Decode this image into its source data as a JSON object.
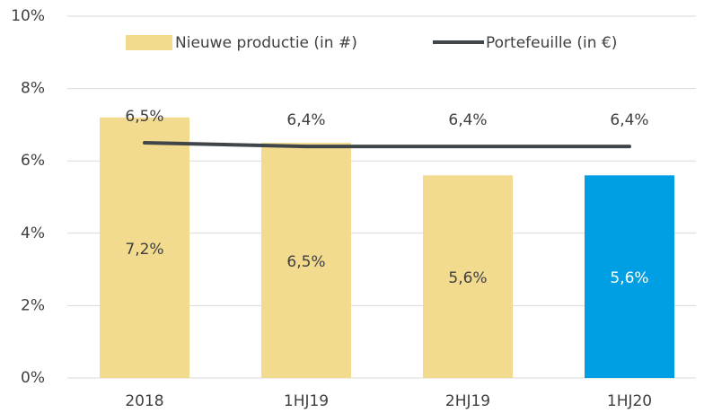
{
  "chart_data": {
    "type": "bar",
    "categories": [
      "2018",
      "1HJ19",
      "2HJ19",
      "1HJ20"
    ],
    "series": [
      {
        "name": "Nieuwe productie (in #)",
        "type": "bar",
        "color": "#f2da8e",
        "colors": [
          "#f2da8e",
          "#f2da8e",
          "#f2da8e",
          "#009fe3"
        ],
        "values": [
          7.2,
          6.5,
          5.6,
          5.6
        ],
        "value_labels": [
          "7,2%",
          "6,5%",
          "5,6%",
          "5,6%"
        ]
      },
      {
        "name": "Portefeuille (in €)",
        "type": "line",
        "color": "#404549",
        "values": [
          6.5,
          6.4,
          6.4,
          6.4
        ],
        "value_labels": [
          "6,5%",
          "6,4%",
          "6,4%",
          "6,4%"
        ]
      }
    ],
    "ylim": [
      0,
      10
    ],
    "yticks": [
      {
        "value": 0,
        "label": "0%"
      },
      {
        "value": 2,
        "label": "2%"
      },
      {
        "value": 4,
        "label": "4%"
      },
      {
        "value": 6,
        "label": "6%"
      },
      {
        "value": 8,
        "label": "8%"
      },
      {
        "value": 10,
        "label": "10%"
      }
    ],
    "grid": true,
    "legend": "top"
  }
}
